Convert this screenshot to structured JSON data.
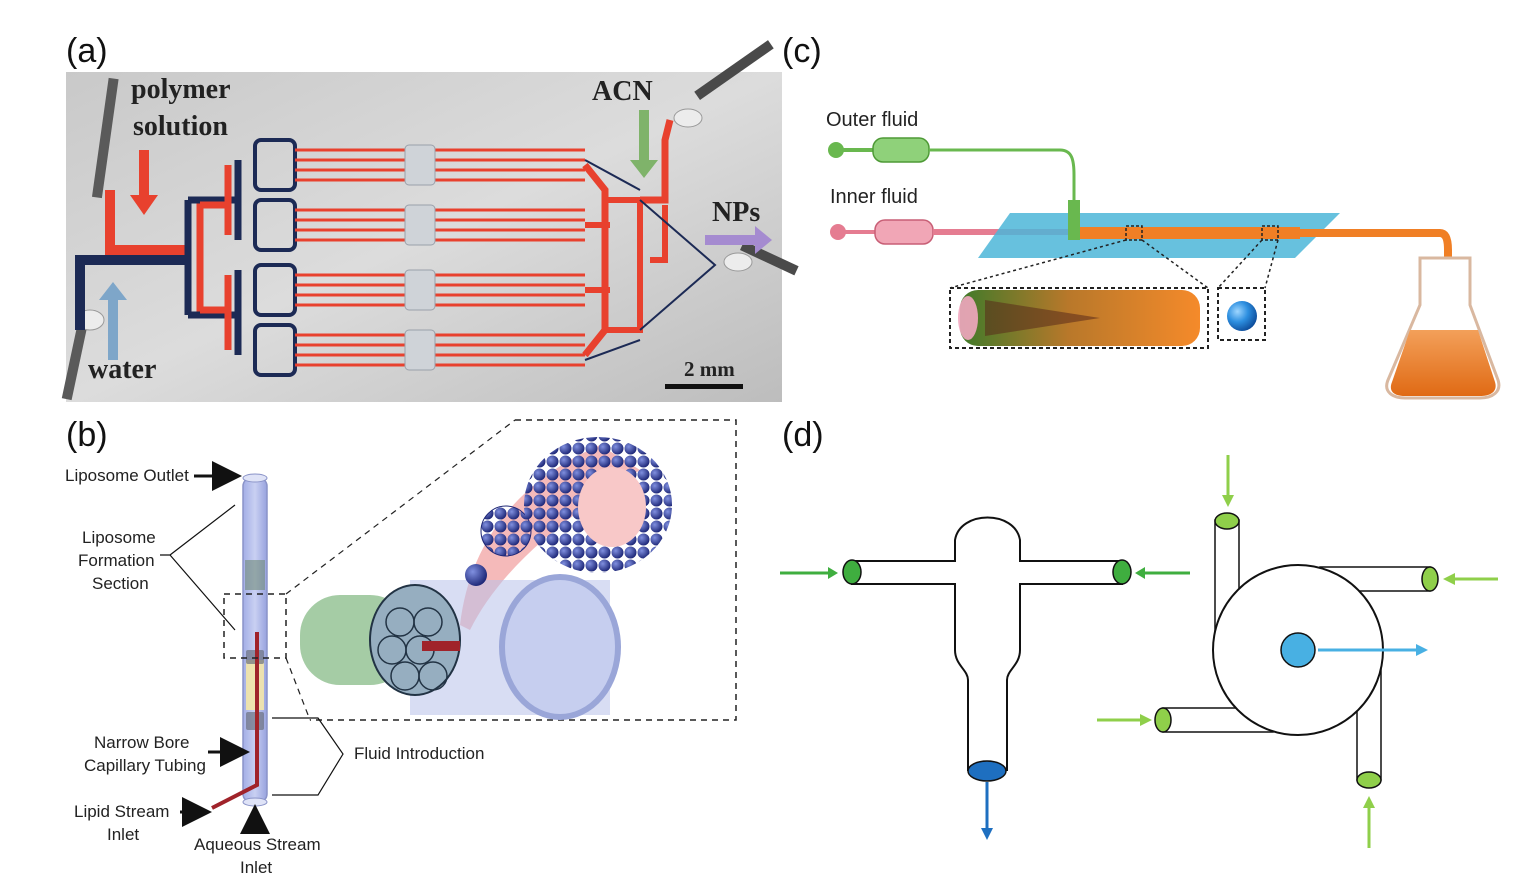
{
  "panels": {
    "a": {
      "letter": "(a)",
      "polymer_line1": "polymer",
      "polymer_line2": "solution",
      "acn": "ACN",
      "nps": "NPs",
      "water": "water",
      "scale": "2 mm"
    },
    "b": {
      "letter": "(b)",
      "liposome_outlet": "Liposome Outlet",
      "formation_line1": "Liposome",
      "formation_line2": "Formation",
      "formation_line3": "Section",
      "narrow_line1": "Narrow Bore",
      "narrow_line2": "Capillary Tubing",
      "fluid_intro": "Fluid Introduction",
      "lipid_line1": "Lipid Stream",
      "lipid_line2": "Inlet",
      "aqueous_line1": "Aqueous Stream",
      "aqueous_line2": "Inlet"
    },
    "c": {
      "letter": "(c)",
      "outer_fluid": "Outer fluid",
      "inner_fluid": "Inner fluid"
    },
    "d": {
      "letter": "(d)"
    }
  },
  "colors": {
    "channel_red": "#e8412e",
    "channel_navy": "#1c2a55",
    "arrow_green": "#7fb36a",
    "arrow_purple": "#a58bd0",
    "arrow_blue": "#7ea6c9",
    "outer_green": "#69b84f",
    "inner_pink": "#e57c91",
    "orange": "#f07f25",
    "chip_blue": "#4cb6d8",
    "port_green": "#3fae3f",
    "port_lightgreen": "#8fcf4a",
    "port_blue": "#1e6fc0",
    "circle_blue": "#48b0e3",
    "liposome_blue": "#24308a"
  }
}
